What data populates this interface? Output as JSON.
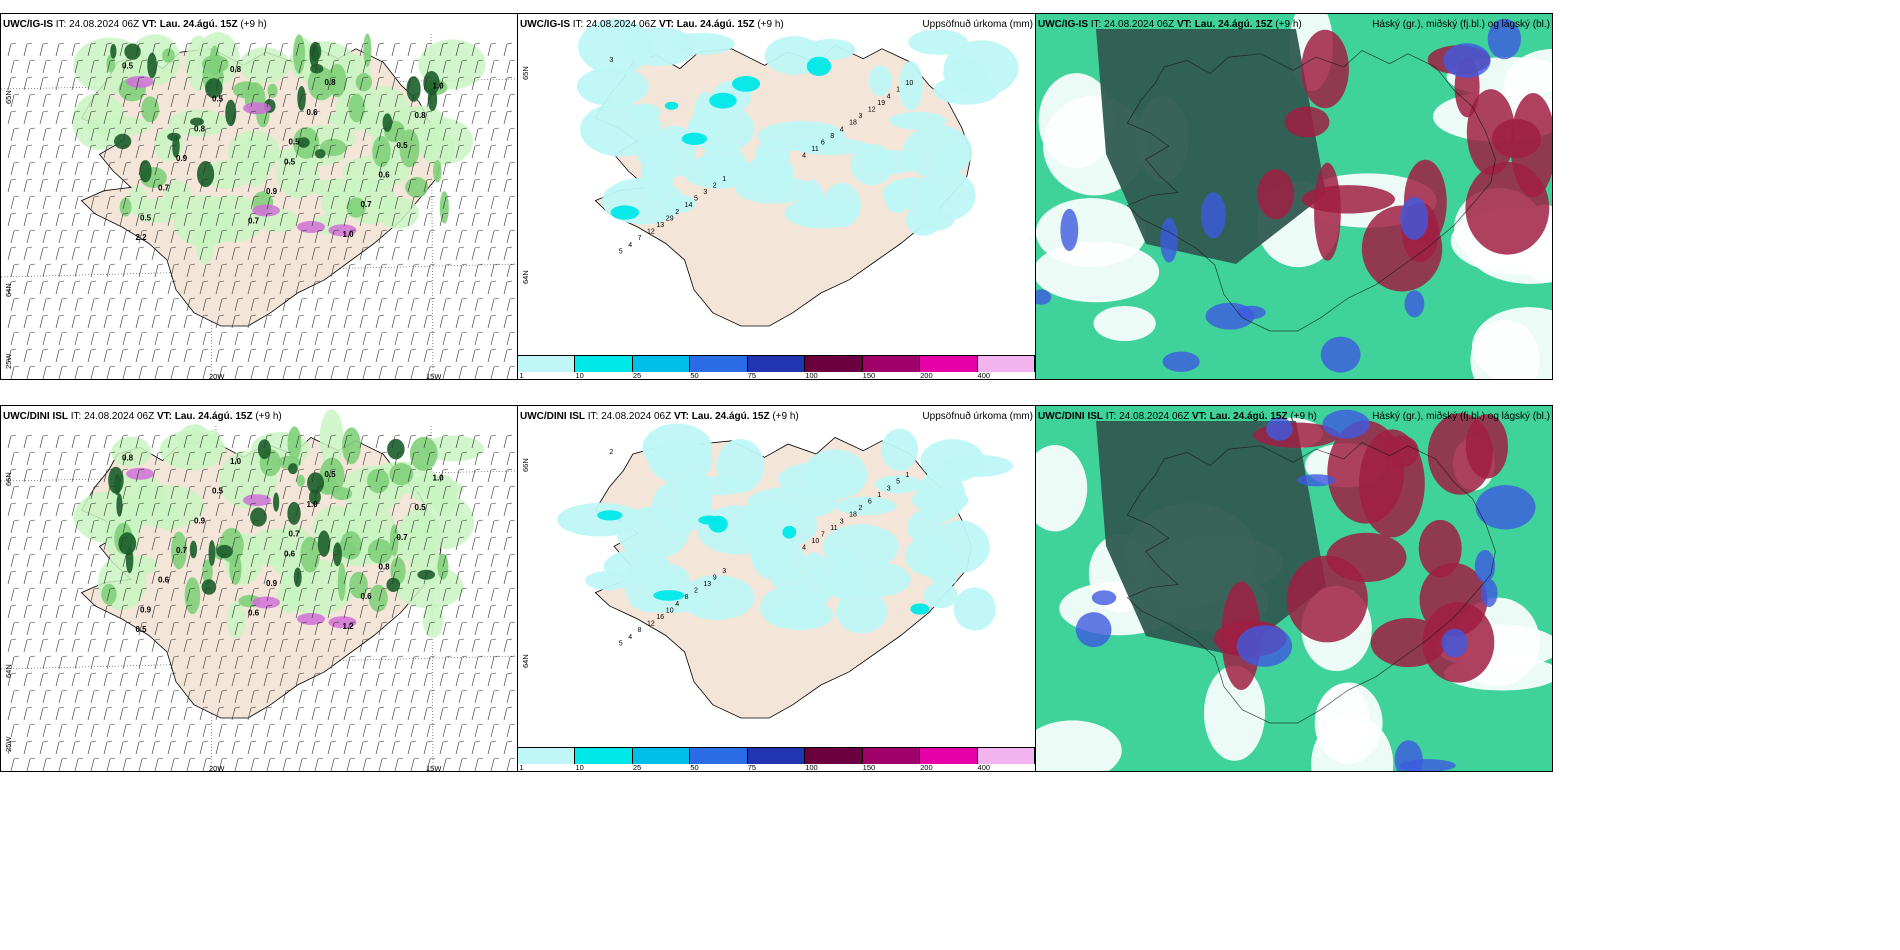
{
  "rows": [
    {
      "model": "UWC/IG-IS",
      "it_label": "IT:",
      "it_value": "24.08.2024 06Z",
      "vt_label": "VT:",
      "vt_value": "Lau. 24.ágú. 15Z",
      "lead": "(+9 h)",
      "lat_label_top": "65N",
      "lat_label_bottom": "64N",
      "lon_label_left": "25W",
      "lon_labels": [
        "20W",
        "15W"
      ],
      "precip_labels_left": [
        "0.5",
        "0.5",
        "0.5",
        "0.6",
        "0.7",
        "0.8",
        "0.9",
        "1.0",
        "0.8",
        "0.7",
        "0.5",
        "0.6",
        "0.8",
        "0.5",
        "0.7",
        "0.8",
        "0.9",
        "1.0",
        "0.5",
        "2.2"
      ],
      "precip_labels_mid": [
        "3",
        "4",
        "5",
        "11",
        "4",
        "6",
        "7",
        "8",
        "12",
        "4",
        "13",
        "18",
        "29",
        "3",
        "2",
        "12",
        "14",
        "19",
        "5",
        "4",
        "3",
        "1",
        "2",
        "10",
        "1"
      ]
    },
    {
      "model": "UWC/DINI ISL",
      "it_label": "IT:",
      "it_value": "24.08.2024 06Z",
      "vt_label": "VT:",
      "vt_value": "Lau. 24.ágú. 15Z",
      "lead": "(+9 h)",
      "lat_label_top": "66N",
      "lat_label_bottom": "64N",
      "lon_label_left": "25W",
      "lon_labels": [
        "20W",
        "15W"
      ],
      "precip_labels_left": [
        "0.8",
        "0.7",
        "0.9",
        "1.0",
        "0.6",
        "0.5",
        "0.7",
        "1.2",
        "0.9",
        "0.6",
        "0.5",
        "0.8",
        "1.0",
        "0.7",
        "0.6",
        "0.5",
        "0.9",
        "1.0",
        "0.6",
        "0.5"
      ],
      "precip_labels_mid": [
        "2",
        "4",
        "5",
        "10",
        "4",
        "7",
        "8",
        "11",
        "12",
        "3",
        "16",
        "18",
        "10",
        "2",
        "4",
        "6",
        "8",
        "1",
        "2",
        "3",
        "13",
        "5",
        "9",
        "1",
        "3"
      ]
    }
  ],
  "precip_title": "Uppsöfnuð úrkoma (mm)",
  "cloud_title": "Háský (gr.), miðský (fj.bl.) og lágský (bl.)",
  "legend": {
    "labels": [
      "1",
      "10",
      "25",
      "50",
      "75",
      "100",
      "150",
      "200",
      "400"
    ],
    "colors": [
      "#bff7f7",
      "#00e8e8",
      "#00bfe6",
      "#2a6be6",
      "#2235b0",
      "#6b003f",
      "#a0006a",
      "#e600a8",
      "#f2b3ee"
    ]
  },
  "colors": {
    "land": "#f3e6d8",
    "sea": "#ffffff",
    "precip_light": "#c9f5c2",
    "precip_mid": "#7fd07a",
    "precip_dark": "#1b5e2a",
    "magenta": "#d070d8",
    "cloud_high": "#2f5b50",
    "cloud_mid": "#a01e44",
    "cloud_low": "#3e5ae0",
    "cloud_green": "#3fd29a"
  }
}
